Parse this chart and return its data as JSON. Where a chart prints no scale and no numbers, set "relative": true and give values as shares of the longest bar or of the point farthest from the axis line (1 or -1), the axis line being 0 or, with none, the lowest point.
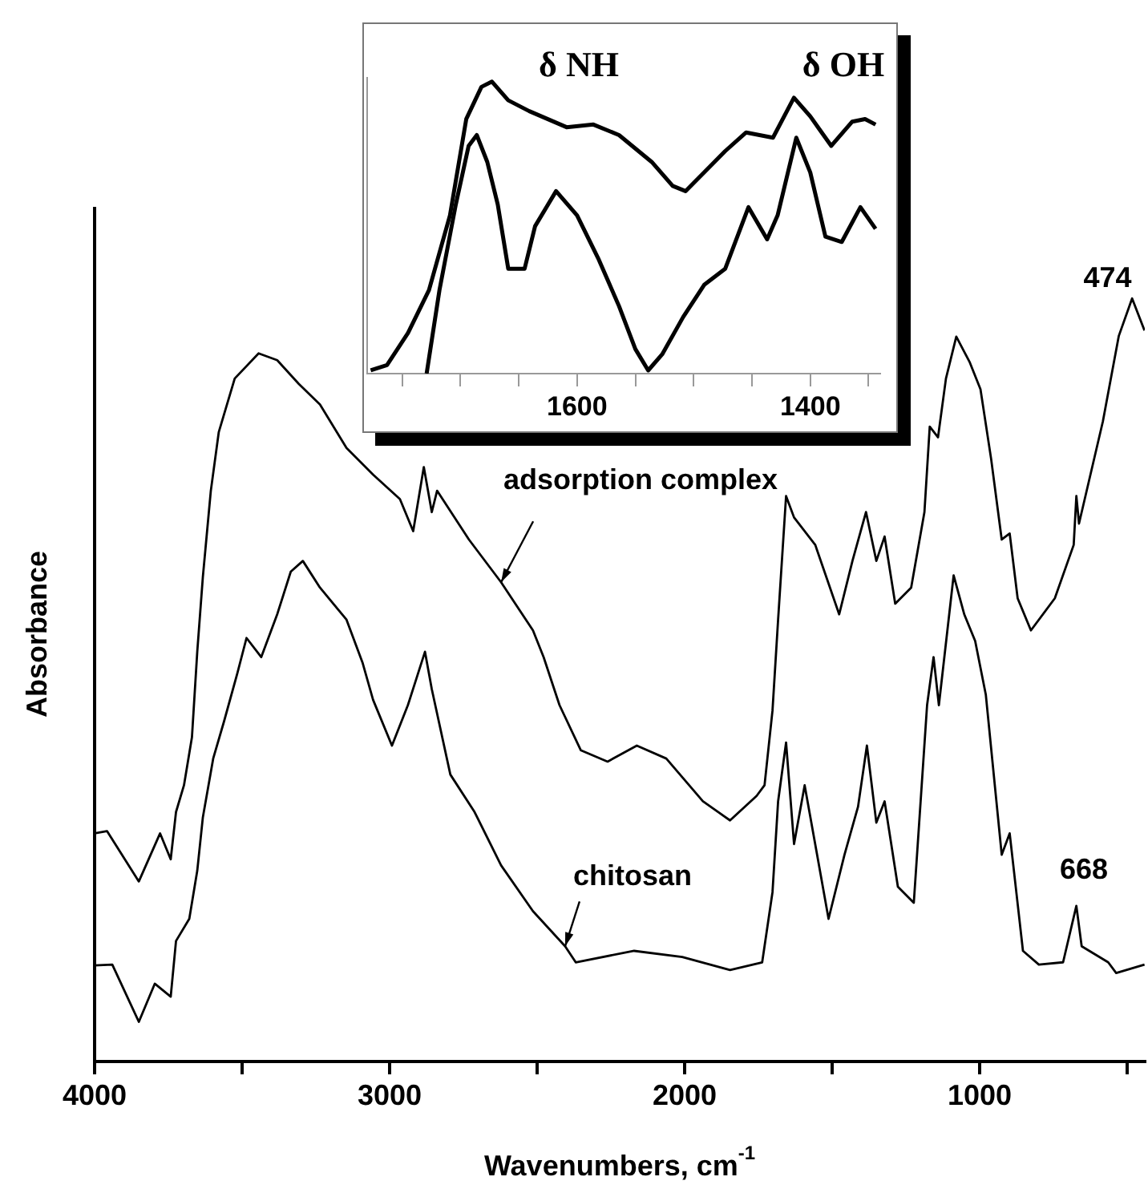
{
  "chart_data": [
    {
      "type": "line",
      "xlabel": "Wavenumbers, cm$^{-1}$",
      "ylabel": "Absorbance",
      "relative": true,
      "marker": "none",
      "xlim": [
        4000,
        440
      ],
      "xticks": [
        4000,
        {
          "value": 3500,
          "label": null
        },
        3000,
        {
          "value": 2500,
          "label": null
        },
        2000,
        {
          "value": 1500,
          "label": null
        },
        1000,
        {
          "value": 500,
          "label": null
        }
      ],
      "annotations": [
        {
          "text": "adsorption complex",
          "x": 2622,
          "y": 0.628
        },
        {
          "text": "chitosan",
          "x": 2405,
          "y": 0.151
        },
        {
          "text": "474",
          "x": 474,
          "y": 1.0
        },
        {
          "text": "668",
          "x": 668,
          "y": 0.204
        }
      ],
      "series": [
        {
          "color": "#000000",
          "x": [
            4000,
            3958,
            3850,
            3778,
            3742,
            3724,
            3697,
            3670,
            3652,
            3633,
            3606,
            3579,
            3525,
            3444,
            3381,
            3308,
            3236,
            3146,
            3056,
            2965,
            2920,
            2884,
            2857,
            2839,
            2731,
            2622,
            2514,
            2478,
            2424,
            2352,
            2261,
            2162,
            2062,
            1938,
            1846,
            1756,
            1729,
            1702,
            1683,
            1656,
            1629,
            1557,
            1476,
            1431,
            1385,
            1350,
            1322,
            1286,
            1232,
            1187,
            1169,
            1141,
            1114,
            1079,
            1033,
            997,
            961,
            925,
            898,
            871,
            826,
            745,
            681,
            672,
            663,
            582,
            528,
            483,
            441
          ],
          "values": [
            0.299,
            0.302,
            0.236,
            0.299,
            0.265,
            0.327,
            0.362,
            0.425,
            0.537,
            0.635,
            0.748,
            0.825,
            0.895,
            0.928,
            0.919,
            0.888,
            0.861,
            0.804,
            0.769,
            0.737,
            0.695,
            0.779,
            0.72,
            0.748,
            0.684,
            0.628,
            0.565,
            0.53,
            0.467,
            0.408,
            0.393,
            0.414,
            0.397,
            0.341,
            0.316,
            0.348,
            0.362,
            0.46,
            0.579,
            0.741,
            0.713,
            0.677,
            0.586,
            0.656,
            0.72,
            0.656,
            0.688,
            0.6,
            0.621,
            0.72,
            0.832,
            0.818,
            0.895,
            0.95,
            0.916,
            0.881,
            0.79,
            0.684,
            0.692,
            0.607,
            0.565,
            0.607,
            0.677,
            0.741,
            0.705,
            0.839,
            0.951,
            1.0,
            0.958
          ]
        },
        {
          "color": "#000000",
          "x": [
            4000,
            3940,
            3850,
            3796,
            3742,
            3724,
            3679,
            3652,
            3633,
            3598,
            3561,
            3516,
            3485,
            3435,
            3381,
            3335,
            3294,
            3236,
            3146,
            3092,
            3056,
            2992,
            2938,
            2880,
            2857,
            2794,
            2712,
            2622,
            2514,
            2405,
            2369,
            2171,
            2008,
            1846,
            1737,
            1702,
            1683,
            1656,
            1629,
            1593,
            1512,
            1458,
            1412,
            1382,
            1350,
            1322,
            1277,
            1223,
            1178,
            1156,
            1138,
            1088,
            1052,
            1015,
            979,
            925,
            898,
            853,
            799,
            717,
            672,
            654,
            564,
            537,
            441
          ],
          "values": [
            0.126,
            0.127,
            0.052,
            0.102,
            0.085,
            0.158,
            0.187,
            0.25,
            0.32,
            0.397,
            0.446,
            0.509,
            0.555,
            0.53,
            0.586,
            0.642,
            0.656,
            0.621,
            0.579,
            0.523,
            0.474,
            0.414,
            0.467,
            0.537,
            0.488,
            0.376,
            0.327,
            0.257,
            0.197,
            0.151,
            0.13,
            0.145,
            0.137,
            0.12,
            0.13,
            0.222,
            0.341,
            0.418,
            0.285,
            0.362,
            0.187,
            0.271,
            0.334,
            0.414,
            0.313,
            0.341,
            0.229,
            0.208,
            0.467,
            0.53,
            0.467,
            0.637,
            0.586,
            0.551,
            0.481,
            0.271,
            0.299,
            0.145,
            0.127,
            0.13,
            0.204,
            0.151,
            0.13,
            0.116,
            0.127
          ]
        }
      ]
    },
    {
      "type": "line",
      "relative": true,
      "marker": "none",
      "xlim": [
        1780,
        1340
      ],
      "xticks": [
        {
          "value": 1750,
          "label": null
        },
        {
          "value": 1700,
          "label": null
        },
        {
          "value": 1650,
          "label": null
        },
        1600,
        {
          "value": 1550,
          "label": null
        },
        {
          "value": 1500,
          "label": null
        },
        {
          "value": 1450,
          "label": null
        },
        1400,
        {
          "value": 1350,
          "label": null
        }
      ],
      "annotations": [
        "δ NH",
        "δ OH"
      ],
      "series": [
        {
          "color": "#000000",
          "x": [
            1777,
            1763,
            1745,
            1727,
            1709,
            1695,
            1682,
            1673,
            1659,
            1641,
            1609,
            1586,
            1564,
            1536,
            1518,
            1507,
            1491,
            1473,
            1455,
            1432,
            1414,
            1400,
            1382,
            1364,
            1353,
            1344
          ],
          "values": [
            0.011,
            0.029,
            0.139,
            0.286,
            0.542,
            0.872,
            0.982,
            1.0,
            0.936,
            0.899,
            0.844,
            0.853,
            0.817,
            0.725,
            0.643,
            0.625,
            0.689,
            0.762,
            0.826,
            0.808,
            0.945,
            0.881,
            0.78,
            0.863,
            0.872,
            0.853
          ]
        },
        {
          "color": "#000000",
          "x": [
            1729,
            1718,
            1704,
            1693,
            1686,
            1677,
            1668,
            1659,
            1645,
            1636,
            1618,
            1600,
            1582,
            1564,
            1550,
            1539,
            1527,
            1509,
            1491,
            1473,
            1453,
            1437,
            1428,
            1412,
            1400,
            1387,
            1373,
            1357,
            1344
          ],
          "values": [
            0,
            0.286,
            0.579,
            0.78,
            0.817,
            0.725,
            0.579,
            0.359,
            0.359,
            0.505,
            0.625,
            0.542,
            0.396,
            0.231,
            0.084,
            0.011,
            0.066,
            0.194,
            0.304,
            0.359,
            0.57,
            0.46,
            0.542,
            0.808,
            0.689,
            0.469,
            0.451,
            0.57,
            0.496
          ]
        }
      ]
    }
  ]
}
